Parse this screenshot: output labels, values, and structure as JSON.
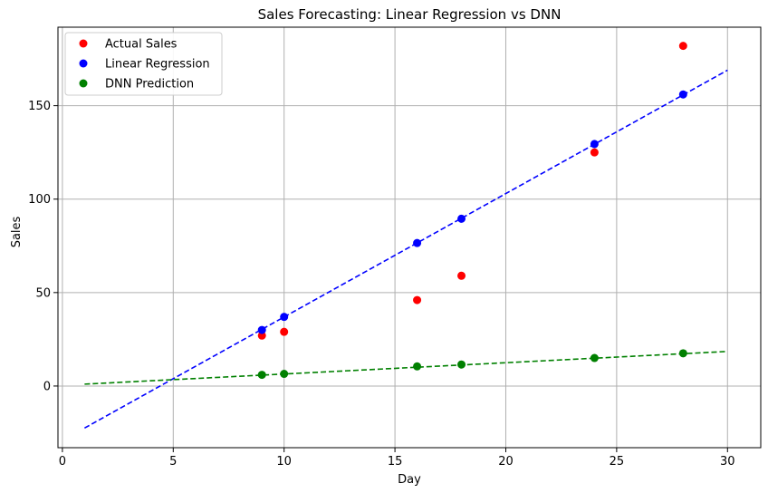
{
  "chart_data": {
    "type": "scatter",
    "title": "Sales Forecasting: Linear Regression vs DNN",
    "xlabel": "Day",
    "ylabel": "Sales",
    "xlim": [
      -0.2,
      31.5
    ],
    "ylim": [
      -33,
      192
    ],
    "xticks": [
      0,
      5,
      10,
      15,
      20,
      25,
      30
    ],
    "yticks": [
      0,
      50,
      100,
      150
    ],
    "grid": true,
    "legend_position": "top-left",
    "series": [
      {
        "name": "Actual Sales",
        "kind": "scatter",
        "color": "#ff0000",
        "x": [
          9,
          10,
          16,
          18,
          24,
          28
        ],
        "y": [
          27,
          29,
          46,
          59,
          125,
          182
        ]
      },
      {
        "name": "Linear Regression",
        "kind": "scatter",
        "color": "#0000ff",
        "x": [
          9,
          10,
          16,
          18,
          24,
          28
        ],
        "y": [
          30,
          37,
          76.5,
          89.5,
          129.5,
          156
        ]
      },
      {
        "name": "DNN Prediction",
        "kind": "scatter",
        "color": "#008000",
        "x": [
          9,
          10,
          16,
          18,
          24,
          28
        ],
        "y": [
          6,
          6.5,
          10.5,
          11.5,
          15,
          17.5
        ]
      }
    ],
    "fit_lines": [
      {
        "of": "Linear Regression",
        "color": "#0000ff",
        "style": "dashed",
        "x": [
          1,
          30
        ],
        "y": [
          -22.5,
          169
        ]
      },
      {
        "of": "DNN Prediction",
        "color": "#008000",
        "style": "dashed",
        "x": [
          1,
          30
        ],
        "y": [
          1,
          18.5
        ]
      }
    ]
  }
}
